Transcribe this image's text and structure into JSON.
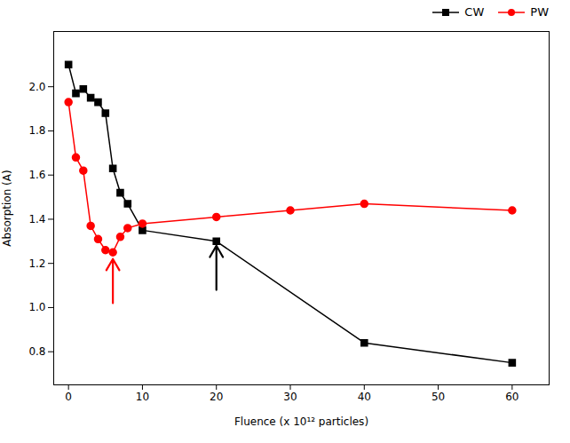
{
  "chart_data": {
    "type": "line",
    "x_label": "Fluence (x 10¹² particles)",
    "y_label": "Absorption (A)",
    "series": [
      {
        "name": "CW",
        "color": "#000000",
        "marker": "square",
        "x": [
          0,
          1,
          2,
          3,
          4,
          5,
          6,
          7,
          8,
          10,
          20,
          40,
          60
        ],
        "values": [
          2.1,
          1.97,
          1.99,
          1.95,
          1.93,
          1.88,
          1.63,
          1.52,
          1.47,
          1.35,
          1.3,
          0.84,
          0.75
        ]
      },
      {
        "name": "PW",
        "color": "#ff0000",
        "marker": "circle",
        "x": [
          0,
          1,
          2,
          3,
          4,
          5,
          6,
          7,
          8,
          10,
          20,
          30,
          40,
          60
        ],
        "values": [
          1.93,
          1.68,
          1.62,
          1.37,
          1.31,
          1.26,
          1.25,
          1.32,
          1.36,
          1.38,
          1.41,
          1.44,
          1.47,
          1.44
        ]
      }
    ],
    "arrows": [
      {
        "x": 20,
        "y_bottom": 1.08,
        "y_tip": 1.28,
        "color": "#000000"
      },
      {
        "x": 6,
        "y_bottom": 1.02,
        "y_tip": 1.22,
        "color": "#ff0000"
      }
    ],
    "xlim": [
      -2,
      65
    ],
    "ylim": [
      0.65,
      2.25
    ],
    "xticks": [
      0,
      10,
      20,
      30,
      40,
      50,
      60
    ],
    "yticks": [
      0.8,
      {
        "value": 1.0,
        "label": "1.0"
      },
      1.2,
      1.4,
      1.6,
      1.8,
      {
        "value": 2.0,
        "label": "2.0"
      }
    ],
    "legend": "upper right"
  }
}
